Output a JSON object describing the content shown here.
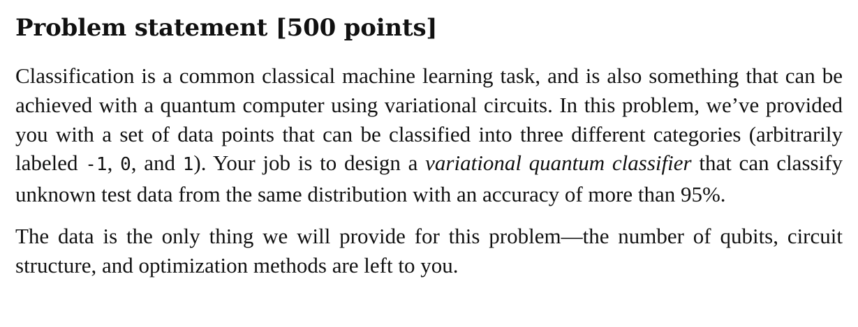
{
  "heading": "Problem statement [500 points]",
  "paragraph1": {
    "part1": "Classification is a common classical machine learning task, and is also something that can be achieved with a quantum computer using variational circuits. In this problem, we’ve provided you with a set of data points that can be classified into three different categories (arbitrarily labeled ",
    "label_neg": "-1",
    "sep1": ", ",
    "label_zero": "0",
    "sep2": ", and ",
    "label_one": "1",
    "part2": "). Your job is to design a ",
    "emph": "variational quantum classifier",
    "part3": " that can classify unknown test data from the same distribution with an accuracy of more than 95%."
  },
  "paragraph2": "The data is the only thing we will provide for this problem—the number of qubits, circuit structure, and optimization methods are left to you."
}
